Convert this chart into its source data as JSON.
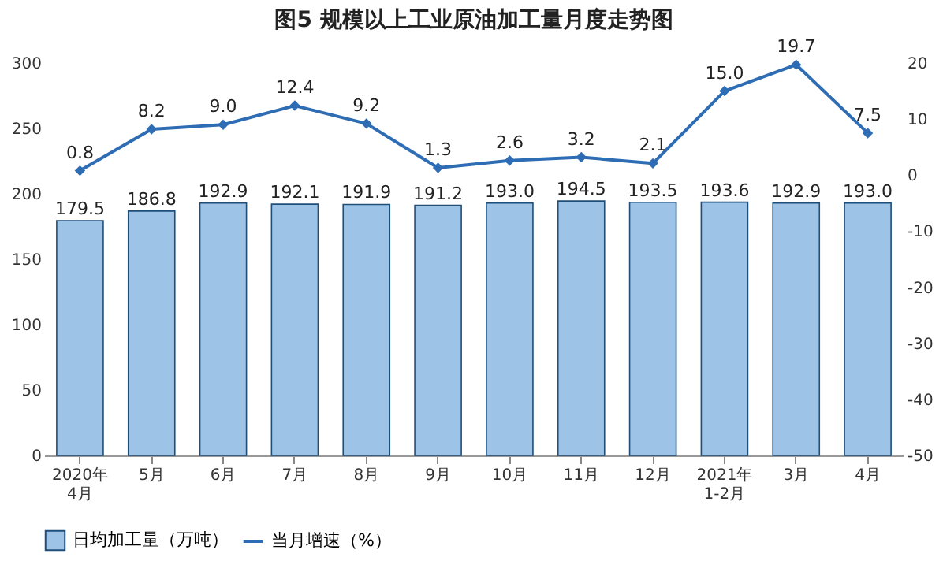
{
  "chart_data": {
    "type": "bar",
    "title": "图5  规模以上工业原油加工量月度走势图",
    "categories": [
      "2020年\n4月",
      "5月",
      "6月",
      "7月",
      "8月",
      "9月",
      "10月",
      "11月",
      "12月",
      "2021年\n1-2月",
      "3月",
      "4月"
    ],
    "series": [
      {
        "name": "日均加工量（万吨）",
        "color": "#9dc3e6",
        "values": [
          179.5,
          186.8,
          192.9,
          192.1,
          191.9,
          191.2,
          193.0,
          194.5,
          193.5,
          193.6,
          192.9,
          193.0
        ],
        "value_labels": [
          "179.5",
          "186.8",
          "192.9",
          "192.1",
          "191.9",
          "191.2",
          "193.0",
          "194.5",
          "193.5",
          "193.6",
          "192.9",
          "193.0"
        ]
      },
      {
        "name": "当月增速（%）",
        "type": "line",
        "axis": "y2",
        "color": "#2e6db4",
        "values": [
          0.8,
          8.2,
          9.0,
          12.4,
          9.2,
          1.3,
          2.6,
          3.2,
          2.1,
          15.0,
          19.7,
          7.5
        ],
        "value_labels": [
          "0.8",
          "8.2",
          "9.0",
          "12.4",
          "9.2",
          "1.3",
          "2.6",
          "3.2",
          "2.1",
          "15.0",
          "19.7",
          "7.5"
        ]
      }
    ],
    "ylim": [
      0,
      300
    ],
    "yticks": [
      0,
      50,
      100,
      150,
      200,
      250,
      300
    ],
    "y2lim": [
      -50,
      20
    ],
    "y2ticks": [
      -50,
      -40,
      -30,
      -20,
      -10,
      0,
      10,
      20
    ],
    "legend": "bottom",
    "marker": "diamond",
    "line_style": "solid",
    "grid": false
  }
}
